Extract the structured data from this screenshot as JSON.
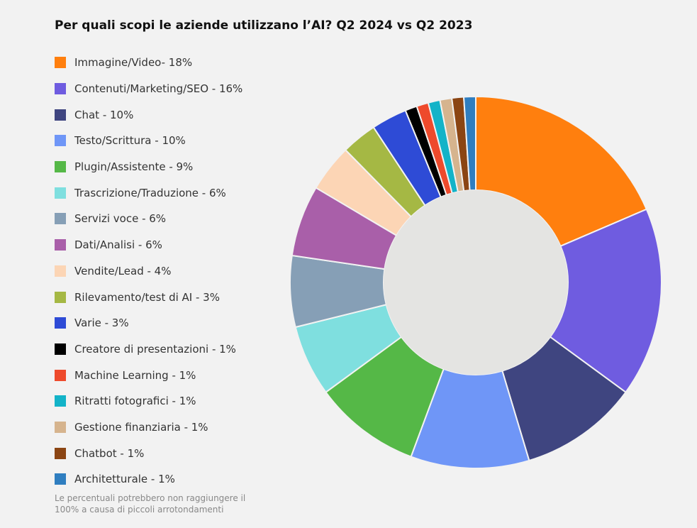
{
  "chart_data": {
    "type": "pie",
    "variant": "donut",
    "title": "Per quali scopi le aziende utilizzano l’AI? Q2 2024 vs Q2 2023",
    "series": [
      {
        "label": "Immagine/Video- 18%",
        "value": 18,
        "color": "#ff7f0e"
      },
      {
        "label": "Contenuti/Marketing/SEO - 16%",
        "value": 16,
        "color": "#6f5ce0"
      },
      {
        "label": "Chat - 10%",
        "value": 10,
        "color": "#3f4580"
      },
      {
        "label": "Testo/Scrittura - 10%",
        "value": 10,
        "color": "#6f96f7"
      },
      {
        "label": "Plugin/Assistente - 9%",
        "value": 9,
        "color": "#55b847"
      },
      {
        "label": "Trascrizione/Traduzione - 6%",
        "value": 6,
        "color": "#7fdfdf"
      },
      {
        "label": "Servizi voce - 6%",
        "value": 6,
        "color": "#869fb6"
      },
      {
        "label": "Dati/Analisi - 6%",
        "value": 6,
        "color": "#a95fa9"
      },
      {
        "label": "Vendite/Lead - 4%",
        "value": 4,
        "color": "#fcd5b5"
      },
      {
        "label": "Rilevamento/test di AI - 3%",
        "value": 3,
        "color": "#a5b844"
      },
      {
        "label": "Varie - 3%",
        "value": 3,
        "color": "#2e4bd6"
      },
      {
        "label": "Creatore di presentazioni - 1%",
        "value": 1,
        "color": "#000000"
      },
      {
        "label": "Machine Learning - 1%",
        "value": 1,
        "color": "#ee4a2c"
      },
      {
        "label": "Ritratti fotografici - 1%",
        "value": 1,
        "color": "#13b3c8"
      },
      {
        "label": "Gestione finanziaria - 1%",
        "value": 1,
        "color": "#d6b48e"
      },
      {
        "label": "Chatbot - 1%",
        "value": 1,
        "color": "#8b4513"
      },
      {
        "label": "Architetturale - 1%",
        "value": 1,
        "color": "#2f7ec0"
      }
    ],
    "inner_color": "#e4e4e2",
    "legend_position": "left"
  },
  "footnote": "Le percentuali potrebbero non raggiungere il 100% a causa di piccoli arrotondamenti"
}
